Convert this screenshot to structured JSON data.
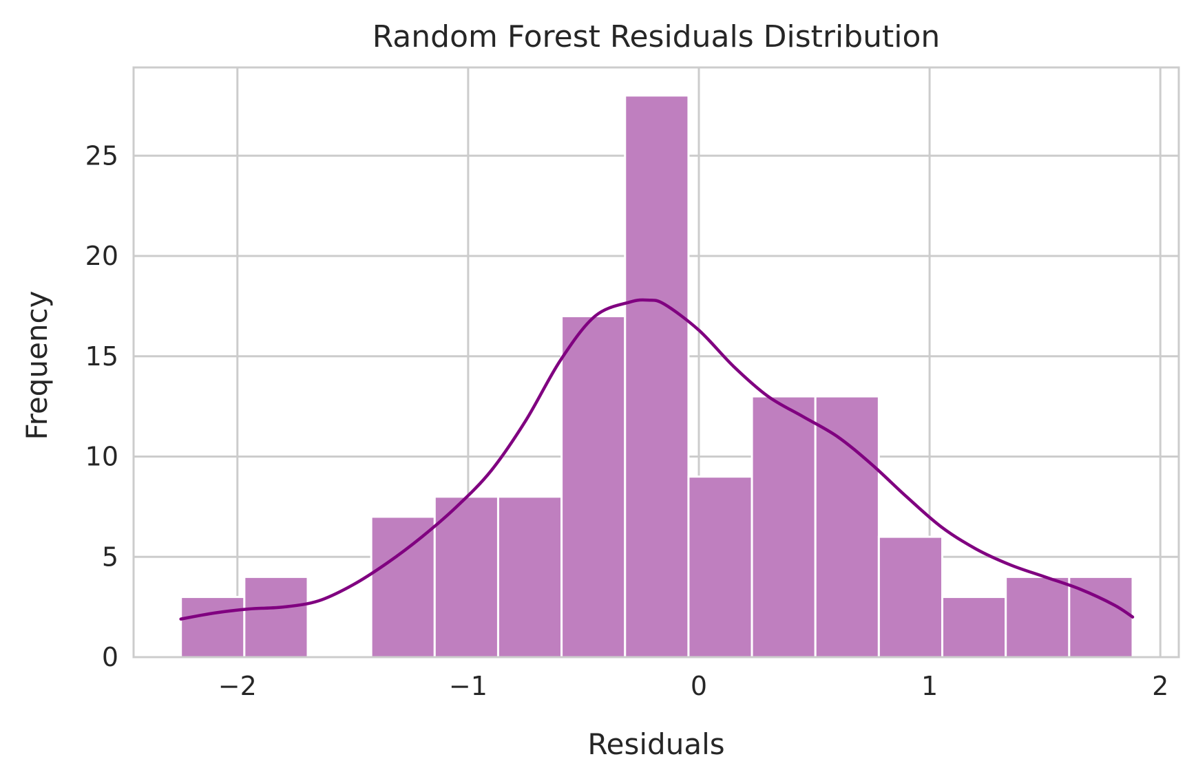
{
  "chart_data": {
    "type": "bar",
    "title": "Random Forest Residuals Distribution",
    "xlabel": "Residuals",
    "ylabel": "Frequency",
    "xlim": [
      -2.45,
      2.08
    ],
    "ylim": [
      0,
      29.4
    ],
    "xticks": [
      -2,
      -1,
      0,
      1,
      2
    ],
    "xtick_labels": [
      "−2",
      "−1",
      "0",
      "1",
      "2"
    ],
    "yticks": [
      0,
      5,
      10,
      15,
      20,
      25
    ],
    "ytick_labels": [
      "0",
      "5",
      "10",
      "15",
      "20",
      "25"
    ],
    "grid": true,
    "bins": [
      {
        "x0": -2.245,
        "x1": -1.97,
        "count": 3
      },
      {
        "x0": -1.97,
        "x1": -1.695,
        "count": 4
      },
      {
        "x0": -1.695,
        "x1": -1.42,
        "count": 0
      },
      {
        "x0": -1.42,
        "x1": -1.145,
        "count": 7
      },
      {
        "x0": -1.145,
        "x1": -0.87,
        "count": 8
      },
      {
        "x0": -0.87,
        "x1": -0.595,
        "count": 8
      },
      {
        "x0": -0.595,
        "x1": -0.32,
        "count": 17
      },
      {
        "x0": -0.32,
        "x1": -0.045,
        "count": 28
      },
      {
        "x0": -0.045,
        "x1": 0.23,
        "count": 9
      },
      {
        "x0": 0.23,
        "x1": 0.505,
        "count": 13
      },
      {
        "x0": 0.505,
        "x1": 0.78,
        "count": 13
      },
      {
        "x0": 0.78,
        "x1": 1.055,
        "count": 6
      },
      {
        "x0": 1.055,
        "x1": 1.33,
        "count": 3
      },
      {
        "x0": 1.33,
        "x1": 1.605,
        "count": 4
      },
      {
        "x0": 1.605,
        "x1": 1.88,
        "count": 4
      }
    ],
    "kde": {
      "x": [
        -2.245,
        -2.1,
        -1.95,
        -1.8,
        -1.65,
        -1.5,
        -1.35,
        -1.2,
        -1.05,
        -0.9,
        -0.75,
        -0.6,
        -0.45,
        -0.3,
        -0.22,
        -0.15,
        0.0,
        0.15,
        0.3,
        0.45,
        0.6,
        0.75,
        0.9,
        1.05,
        1.2,
        1.35,
        1.5,
        1.65,
        1.8,
        1.88
      ],
      "y": [
        1.9,
        2.2,
        2.4,
        2.5,
        2.8,
        3.6,
        4.7,
        6.0,
        7.5,
        9.3,
        11.8,
        14.8,
        17.0,
        17.7,
        17.8,
        17.6,
        16.3,
        14.5,
        13.0,
        12.0,
        11.0,
        9.6,
        8.0,
        6.5,
        5.4,
        4.6,
        4.0,
        3.4,
        2.6,
        2.0
      ]
    },
    "colors": {
      "bar_fill": "#bf7fbf",
      "bar_edge": "#ffffff",
      "kde_line": "#800080",
      "grid": "#cccccc",
      "spine": "#cccccc",
      "text": "#262626",
      "background": "#ffffff"
    }
  }
}
